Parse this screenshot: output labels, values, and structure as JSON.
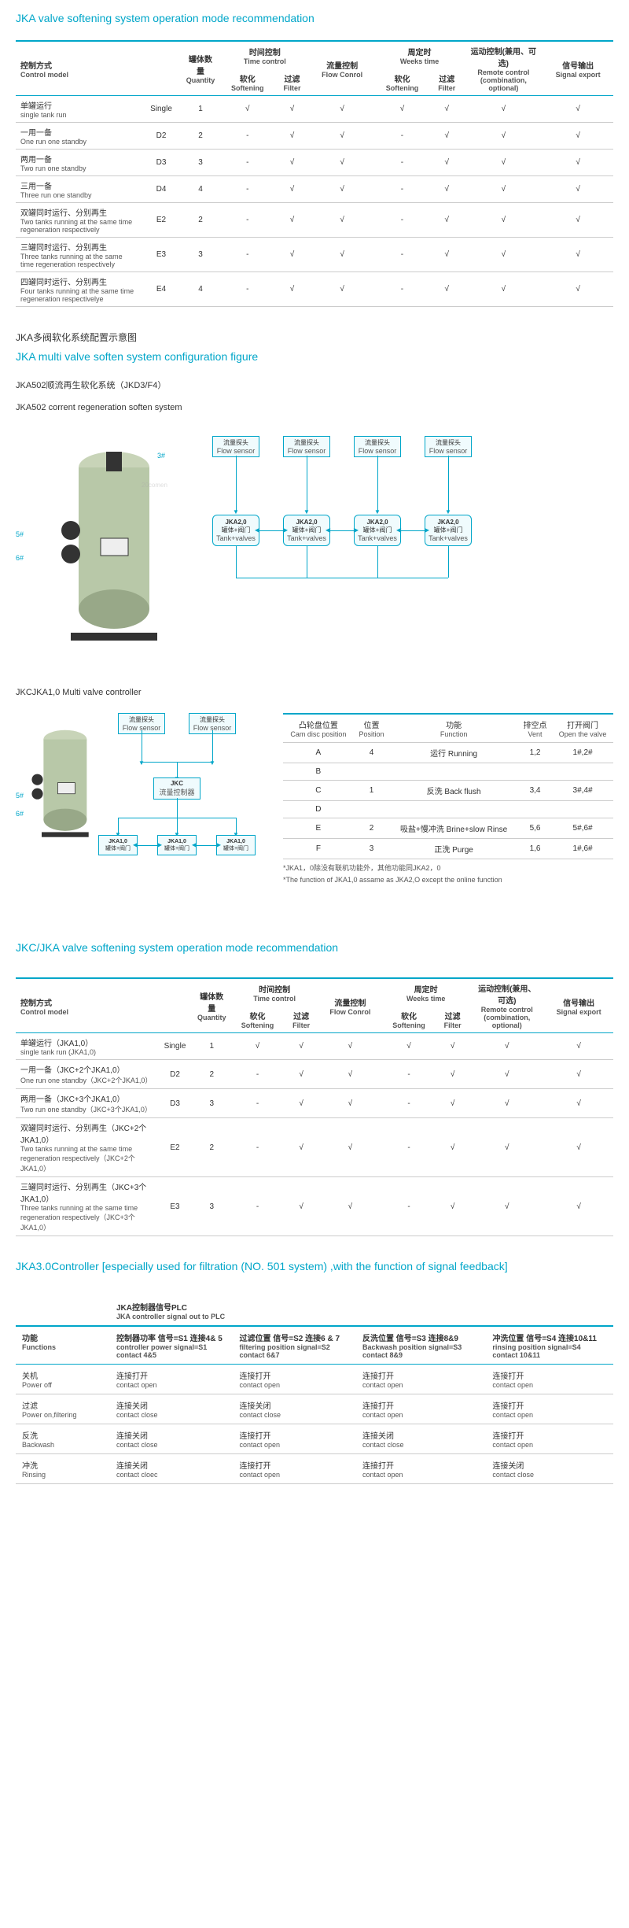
{
  "titles": {
    "t1": "JKA valve softening system operation mode recommendation",
    "multivalve_cn": "JKA多阀软化系统配置示意图",
    "multivalve_en": "JKA multi valve soften system configuration figure",
    "jka502_cn": "JKA502顺流再生软化系统（JKD3/F4）",
    "jka502_en": "JKA502 corrent regeneration soften system",
    "jkc_ctrl": "JKCJKA1,0 Multi valve  controller",
    "t2": "JKC/JKA valve softening system operation mode recommendation",
    "t3": "JKA3.0Controller [especially used for filtration (NO. 501 system) ,with the function of signal feedback]",
    "plc_cn": "JKA控制器信号PLC",
    "plc_en": "JKA controller signal out to PLC"
  },
  "table1_headers": {
    "h1_cn": "控制方式",
    "h1_en": "Control model",
    "h2_cn": "罐体数量",
    "h2_en": "Quantity",
    "h3_cn": "时间控制",
    "h3_en": "Time control",
    "h4_cn": "流量控制",
    "h4_en": "Flow Conrol",
    "h5_cn": "周定时",
    "h5_en": "Weeks time",
    "h6_cn": "运动控制(兼用、可选)",
    "h6_en": "Remote control (combination, optional)",
    "h7_cn": "信号输出",
    "h7_en": "Signal export",
    "sub_soft_cn": "软化",
    "sub_soft_en": "Softening",
    "sub_filt_cn": "过滤",
    "sub_filt_en": "Filter"
  },
  "check": "√",
  "dash": "-",
  "table1_rows": [
    {
      "cn": "单罐运行",
      "en": "single tank run",
      "code": "Single",
      "qty": "1",
      "tc_s": "√",
      "tc_f": "√",
      "fc": "√",
      "wt_s": "√",
      "wt_f": "√",
      "rc": "√",
      "se": "√"
    },
    {
      "cn": "一用一备",
      "en": "One run one standby",
      "code": "D2",
      "qty": "2",
      "tc_s": "-",
      "tc_f": "√",
      "fc": "√",
      "wt_s": "-",
      "wt_f": "√",
      "rc": "√",
      "se": "√"
    },
    {
      "cn": "两用一备",
      "en": "Two run one standby",
      "code": "D3",
      "qty": "3",
      "tc_s": "-",
      "tc_f": "√",
      "fc": "√",
      "wt_s": "-",
      "wt_f": "√",
      "rc": "√",
      "se": "√"
    },
    {
      "cn": "三用一备",
      "en": "Three run one standby",
      "code": "D4",
      "qty": "4",
      "tc_s": "-",
      "tc_f": "√",
      "fc": "√",
      "wt_s": "-",
      "wt_f": "√",
      "rc": "√",
      "se": "√"
    },
    {
      "cn": "双罐同时运行、分别再生",
      "en": "Two tanks running at the same time regeneration respectively",
      "code": "E2",
      "qty": "2",
      "tc_s": "-",
      "tc_f": "√",
      "fc": "√",
      "wt_s": "-",
      "wt_f": "√",
      "rc": "√",
      "se": "√"
    },
    {
      "cn": "三罐同时运行、分别再生",
      "en": "Three tanks running at the same time regeneration respectively",
      "code": "E3",
      "qty": "3",
      "tc_s": "-",
      "tc_f": "√",
      "fc": "√",
      "wt_s": "-",
      "wt_f": "√",
      "rc": "√",
      "se": "√"
    },
    {
      "cn": "四罐同时运行、分别再生",
      "en": "Four tanks running at the same time regeneration respectivelye",
      "code": "E4",
      "qty": "4",
      "tc_s": "-",
      "tc_f": "√",
      "fc": "√",
      "wt_s": "-",
      "wt_f": "√",
      "rc": "√",
      "se": "√"
    }
  ],
  "sensor_label_cn": "流量探头",
  "sensor_label_en": "Flow sensor",
  "valve_label_top": "JKA2,0",
  "valve_label_cn": "罐体+阀门",
  "valve_label_en": "Tank+valves",
  "jkc_box_cn": "JKC",
  "jkc_box_en": "流量控制器",
  "num3": "3#",
  "num5": "5#",
  "num6": "6#",
  "cam_table": {
    "hdr": {
      "c1_cn": "凸轮盘位置",
      "c1_en": "Cam disc position",
      "c2_cn": "位置",
      "c2_en": "Position",
      "c3_cn": "功能",
      "c3_en": "Function",
      "c4_cn": "排空点",
      "c4_en": "Vent",
      "c5_cn": "打开阀门",
      "c5_en": "Open the valve"
    },
    "rows": [
      {
        "p": "A",
        "pos": "4",
        "fn_cn": "运行",
        "fn_en": "Running",
        "vent": "1,2",
        "open": "1#,2#"
      },
      {
        "p": "B",
        "pos": "",
        "fn_cn": "",
        "fn_en": "",
        "vent": "",
        "open": ""
      },
      {
        "p": "C",
        "pos": "1",
        "fn_cn": "反洗",
        "fn_en": "Back flush",
        "vent": "3,4",
        "open": "3#,4#"
      },
      {
        "p": "D",
        "pos": "",
        "fn_cn": "",
        "fn_en": "",
        "vent": "",
        "open": ""
      },
      {
        "p": "E",
        "pos": "2",
        "fn_cn": "吸盐+慢冲洗",
        "fn_en": "Brine+slow Rinse",
        "vent": "5,6",
        "open": "5#,6#"
      },
      {
        "p": "F",
        "pos": "3",
        "fn_cn": "正洗",
        "fn_en": "Purge",
        "vent": "1,6",
        "open": "1#,6#"
      }
    ],
    "note1": "*JKA1，0除没有联机功能外，其他功能同JKA2，0",
    "note2": "*The function of JKA1,0 assame as JKA2,O except the online function"
  },
  "table2_rows": [
    {
      "cn": "单罐运行（JKA1,0）",
      "en": "single tank run (JKA1,0)",
      "code": "Single",
      "qty": "1",
      "tc_s": "√",
      "tc_f": "√",
      "fc": "√",
      "wt_s": "√",
      "wt_f": "√",
      "rc": "√",
      "se": "√"
    },
    {
      "cn": "一用一备（JKC+2个JKA1,0）",
      "en": "One run one standby（JKC+2个JKA1,0）",
      "code": "D2",
      "qty": "2",
      "tc_s": "-",
      "tc_f": "√",
      "fc": "√",
      "wt_s": "-",
      "wt_f": "√",
      "rc": "√",
      "se": "√"
    },
    {
      "cn": "两用一备（JKC+3个JKA1,0）",
      "en": "Two run one standby（JKC+3个JKA1,0）",
      "code": "D3",
      "qty": "3",
      "tc_s": "-",
      "tc_f": "√",
      "fc": "√",
      "wt_s": "-",
      "wt_f": "√",
      "rc": "√",
      "se": "√"
    },
    {
      "cn": "双罐同时运行、分别再生（JKC+2个JKA1,0）",
      "en": "Two tanks running at the same time regeneration respectively（JKC+2个JKA1,0）",
      "code": "E2",
      "qty": "2",
      "tc_s": "-",
      "tc_f": "√",
      "fc": "√",
      "wt_s": "-",
      "wt_f": "√",
      "rc": "√",
      "se": "√"
    },
    {
      "cn": "三罐同时运行、分别再生（JKC+3个JKA1,0）",
      "en": "Three tanks running at the same time regeneration respectively（JKC+3个JKA1,0）",
      "code": "E3",
      "qty": "3",
      "tc_s": "-",
      "tc_f": "√",
      "fc": "√",
      "wt_s": "-",
      "wt_f": "√",
      "rc": "√",
      "se": "√"
    }
  ],
  "plc_hdr": {
    "h0_cn": "功能",
    "h0_en": "Functions",
    "h1_cn": "控制器功率 信号=S1 连接4& 5",
    "h1_en": "controller power signal=S1 contact 4&5",
    "h2_cn": "过滤位置 信号=S2 连接6 & 7",
    "h2_en": "filtering position signal=S2 contact 6&7",
    "h3_cn": "反洗位置 信号=S3 连接8&9",
    "h3_en": "Backwash position signal=S3 contact 8&9",
    "h4_cn": "冲洗位置 信号=S4 连接10&11",
    "h4_en": "rinsing position signal=S4 contact 10&11"
  },
  "plc_rows": [
    {
      "fn_cn": "关机",
      "fn_en": "Power off",
      "v1_cn": "连接打开",
      "v1_en": "contact open",
      "v2_cn": "连接打开",
      "v2_en": "contact open",
      "v3_cn": "连接打开",
      "v3_en": "contact open",
      "v4_cn": "连接打开",
      "v4_en": "contact open"
    },
    {
      "fn_cn": "过滤",
      "fn_en": "Power on,filtering",
      "v1_cn": "连接关闭",
      "v1_en": "contact close",
      "v2_cn": "连接关闭",
      "v2_en": "contact close",
      "v3_cn": "连接打开",
      "v3_en": "contact open",
      "v4_cn": "连接打开",
      "v4_en": "contact open"
    },
    {
      "fn_cn": "反洗",
      "fn_en": "Backwash",
      "v1_cn": "连接关闭",
      "v1_en": "contact close",
      "v2_cn": "连接打开",
      "v2_en": "contact open",
      "v3_cn": "连接关闭",
      "v3_en": "contact close",
      "v4_cn": "连接打开",
      "v4_en": "contact open"
    },
    {
      "fn_cn": "冲洗",
      "fn_en": "Rinsing",
      "v1_cn": "连接关闭",
      "v1_en": "contact cloec",
      "v2_cn": "连接打开",
      "v2_en": "contact open",
      "v3_cn": "连接打开",
      "v3_en": "contact open",
      "v4_cn": "连接关闭",
      "v4_en": "contact close"
    }
  ],
  "colors": {
    "brand": "#00a6c9",
    "border": "#cccccc",
    "text": "#333333",
    "sub": "#555555"
  }
}
